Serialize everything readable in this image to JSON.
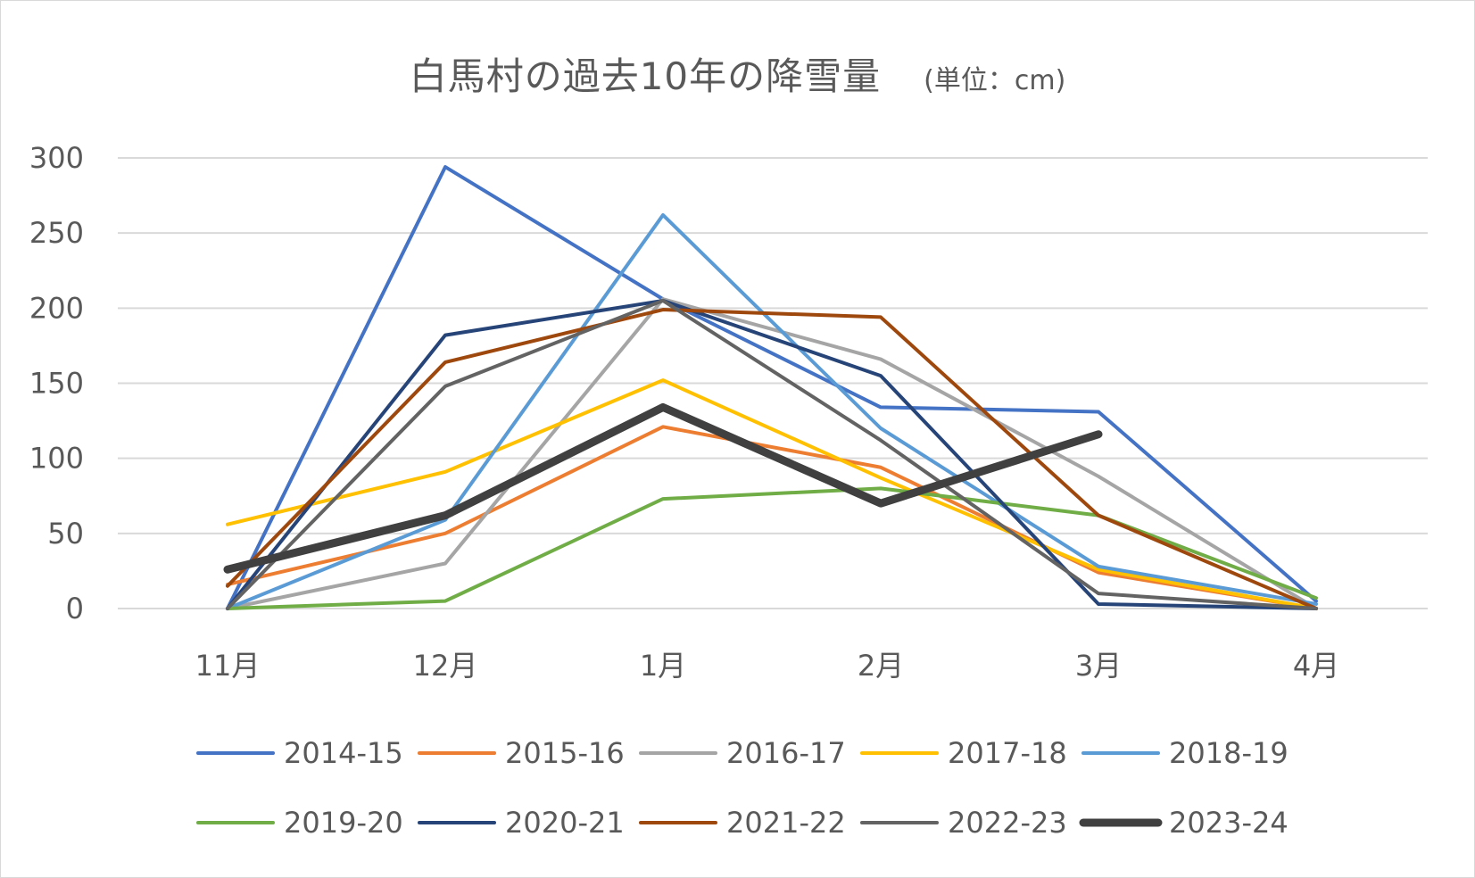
{
  "chart_data": {
    "type": "line",
    "title": "白馬村の過去10年の降雪量",
    "unit_note": "(単位：cm)",
    "xlabel": "",
    "ylabel": "",
    "categories": [
      "11月",
      "12月",
      "1月",
      "2月",
      "3月",
      "4月"
    ],
    "ylim": [
      0,
      300
    ],
    "yticks": [
      0,
      50,
      100,
      150,
      200,
      250,
      300
    ],
    "grid": true,
    "legend_position": "bottom",
    "series": [
      {
        "name": "2014-15",
        "color": "#4472C4",
        "values": [
          0,
          294,
          206,
          134,
          131,
          5
        ]
      },
      {
        "name": "2015-16",
        "color": "#ED7D31",
        "values": [
          16,
          50,
          121,
          94,
          24,
          0
        ]
      },
      {
        "name": "2016-17",
        "color": "#A5A5A5",
        "values": [
          0,
          30,
          206,
          166,
          88,
          0
        ]
      },
      {
        "name": "2017-18",
        "color": "#FFC000",
        "values": [
          56,
          91,
          152,
          87,
          26,
          0
        ]
      },
      {
        "name": "2018-19",
        "color": "#5B9BD5",
        "values": [
          0,
          59,
          262,
          120,
          28,
          3
        ]
      },
      {
        "name": "2019-20",
        "color": "#70AD47",
        "values": [
          0,
          5,
          73,
          80,
          62,
          7
        ]
      },
      {
        "name": "2020-21",
        "color": "#264478",
        "values": [
          0,
          182,
          205,
          155,
          3,
          0
        ]
      },
      {
        "name": "2021-22",
        "color": "#9E480E",
        "values": [
          15,
          164,
          199,
          194,
          62,
          0
        ]
      },
      {
        "name": "2022-23",
        "color": "#636363",
        "values": [
          0,
          148,
          205,
          112,
          10,
          0
        ]
      },
      {
        "name": "2023-24",
        "color": "#404040",
        "bold": true,
        "values": [
          26,
          62,
          134,
          70,
          116,
          null
        ]
      }
    ]
  }
}
